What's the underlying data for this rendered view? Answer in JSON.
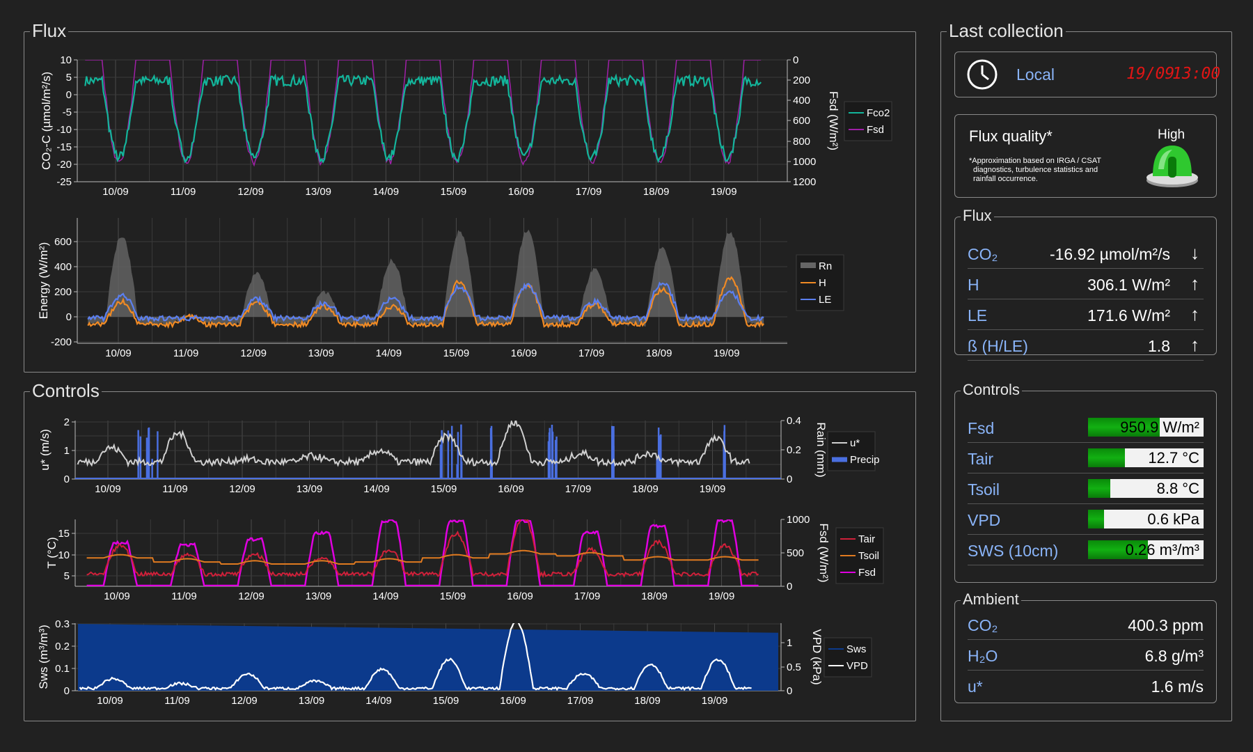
{
  "sections": {
    "flux": "Flux",
    "controls": "Controls",
    "last_collection": "Last collection",
    "flux_box": "Flux",
    "controls_box": "Controls",
    "ambient_box": "Ambient"
  },
  "dates": [
    "10/09",
    "11/09",
    "12/09",
    "13/09",
    "14/09",
    "15/09",
    "16/09",
    "17/09",
    "18/09",
    "19/09"
  ],
  "clock": {
    "label": "Local",
    "date": "19/09",
    "time": "13:00"
  },
  "quality": {
    "title": "Flux quality*",
    "level": "High",
    "note_line1": "*Approximation based on IRGA / CSAT",
    "note_line2": "diagnostics, turbulence statistics and",
    "note_line3": "rainfall occurrence."
  },
  "flux_rows": [
    {
      "label": "CO₂",
      "value": "-16.92 µmol/m²/s",
      "trend": "down"
    },
    {
      "label": "H",
      "value": "306.1 W/m²",
      "trend": "up"
    },
    {
      "label": "LE",
      "value": "171.6 W/m²",
      "trend": "up"
    },
    {
      "label": "ß (H/LE)",
      "value": "1.8",
      "trend": "up"
    }
  ],
  "control_rows": [
    {
      "label": "Fsd",
      "value": "950.9 W/m²",
      "fraction": 0.62
    },
    {
      "label": "Tair",
      "value": "12.7 °C",
      "fraction": 0.32
    },
    {
      "label": "Tsoil",
      "value": "8.8 °C",
      "fraction": 0.19
    },
    {
      "label": "VPD",
      "value": "0.6 kPa",
      "fraction": 0.14
    },
    {
      "label": "SWS (10cm)",
      "value": "0.26 m³/m³",
      "fraction": 0.52
    }
  ],
  "ambient_rows": [
    {
      "label": "CO₂",
      "value": "400.3 ppm"
    },
    {
      "label": "H₂O",
      "value": "6.8 g/m³"
    },
    {
      "label": "u*",
      "value": "1.6 m/s"
    }
  ],
  "colors": {
    "fco2": "#13b59b",
    "fsd1": "#a020a8",
    "rn": "#666666",
    "h": "#f08a24",
    "le": "#5b7ff0",
    "ustar": "#d0d0d0",
    "precip": "#4a6fe0",
    "tair": "#d0203a",
    "tsoil": "#e07a20",
    "fsd2": "#e000e0",
    "sws": "#0c3a8c",
    "vpd": "#ffffff"
  },
  "chart_data": [
    {
      "type": "line",
      "ylabel": "CO₂-C (µmol/m²/s)",
      "y2label": "Fsd (W/m²)",
      "ylim": [
        -25,
        10
      ],
      "y2lim": [
        0,
        1200
      ],
      "y2_inverted": true,
      "yticks": [
        "10",
        "5",
        "0",
        "-5",
        "-10",
        "-15",
        "-20",
        "-25"
      ],
      "y2ticks": [
        "0",
        "200",
        "400",
        "600",
        "800",
        "1000",
        "1200"
      ],
      "series": [
        {
          "name": "Fco2"
        },
        {
          "name": "Fsd"
        }
      ],
      "note": "per-day pattern: Fco2 ~4 at night, ~ -18 midday; Fsd 0 night, ~950-1000 midday"
    },
    {
      "type": "line",
      "ylabel": "Energy (W/m²)",
      "ylim": [
        -200,
        700
      ],
      "yticks": [
        "600",
        "400",
        "200",
        "0",
        "-200"
      ],
      "series": [
        {
          "name": "Rn",
          "type": "area"
        },
        {
          "name": "H"
        },
        {
          "name": "LE"
        }
      ],
      "daily_peak": {
        "Rn": [
          650,
          10,
          350,
          200,
          450,
          680,
          690,
          380,
          550,
          680
        ],
        "H": [
          120,
          0,
          110,
          80,
          80,
          280,
          250,
          100,
          220,
          300
        ],
        "LE": [
          180,
          0,
          150,
          120,
          150,
          250,
          260,
          130,
          280,
          200
        ]
      }
    },
    {
      "type": "line",
      "ylabel": "u* (m/s)",
      "y2label": "Rain (mm)",
      "ylim": [
        0,
        2.2
      ],
      "y2lim": [
        0,
        0.4
      ],
      "yticks": [
        "2",
        "1",
        "0"
      ],
      "y2ticks": [
        "0.4",
        "0.2",
        "0"
      ],
      "series": [
        {
          "name": "u*"
        },
        {
          "name": "Precip",
          "type": "bar"
        }
      ],
      "daily_peak": {
        "u*": [
          1.1,
          1.6,
          0.7,
          0.8,
          1.0,
          1.5,
          2.0,
          0.9,
          0.9,
          1.4
        ]
      }
    },
    {
      "type": "line",
      "ylabel": "T (°C)",
      "y2label": "Fsd (W/m²)",
      "ylim": [
        2,
        18
      ],
      "y2lim": [
        0,
        1000
      ],
      "yticks": [
        "15",
        "10",
        "5"
      ],
      "y2ticks": [
        "1000",
        "500",
        "0"
      ],
      "series": [
        {
          "name": "Tair"
        },
        {
          "name": "Tsoil"
        },
        {
          "name": "Fsd"
        }
      ],
      "daily": {
        "Tair_peak": [
          12,
          10,
          10,
          9,
          11,
          15,
          19,
          11,
          13,
          12
        ],
        "Tsoil": [
          9,
          8,
          7.5,
          7.5,
          8,
          9,
          10,
          9.5,
          8.5,
          8.5
        ],
        "Fsd_peak": [
          650,
          620,
          700,
          800,
          980,
          980,
          980,
          800,
          900,
          980
        ]
      }
    },
    {
      "type": "area",
      "ylabel": "Sws (m³/m³)",
      "y2label": "VPD (kPa)",
      "ylim": [
        0,
        0.3
      ],
      "y2lim": [
        0,
        1.4
      ],
      "yticks": [
        "0.3",
        "0.2",
        "0.1",
        "0"
      ],
      "y2ticks": [
        "1",
        "0.5",
        "0"
      ],
      "series": [
        {
          "name": "Sws",
          "values_start": 0.3,
          "values_end": 0.26
        },
        {
          "name": "VPD"
        }
      ],
      "daily_peak": {
        "VPD": [
          0.2,
          0.1,
          0.3,
          0.15,
          0.4,
          0.6,
          1.4,
          0.3,
          0.5,
          0.6
        ]
      }
    }
  ]
}
